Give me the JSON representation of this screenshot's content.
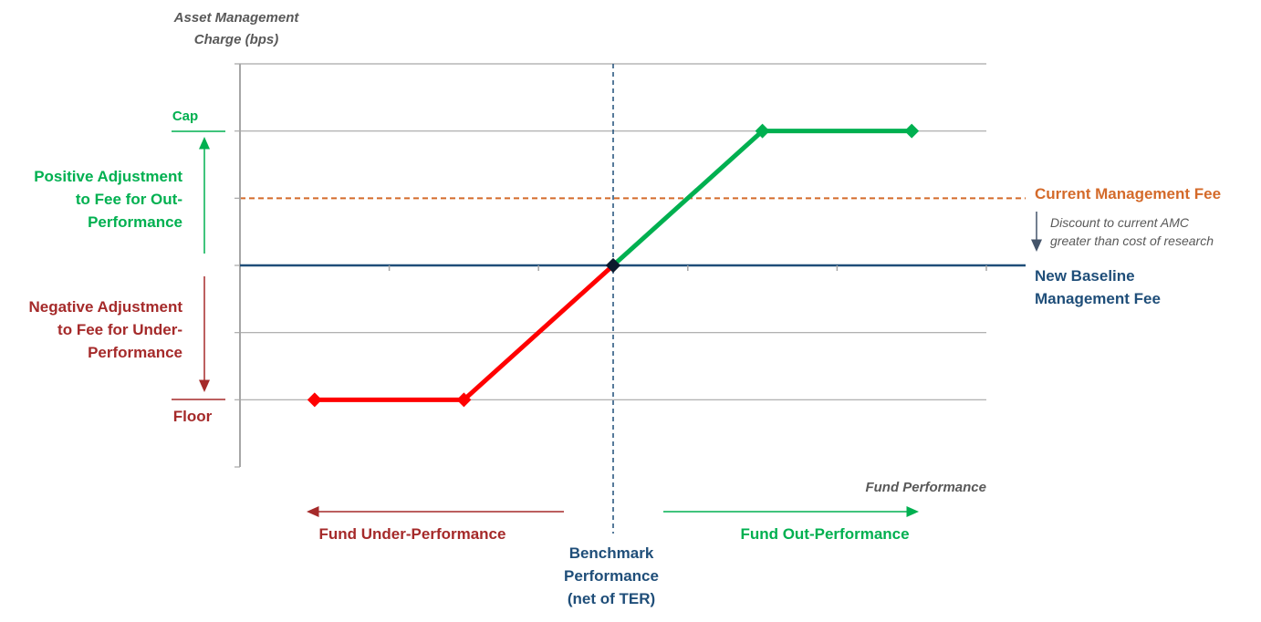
{
  "chart_data": {
    "type": "line",
    "ylabel": [
      "Asset Management",
      "Charge (bps)"
    ],
    "xlabel": "Fund Performance",
    "y_levels": {
      "floor": 1,
      "new_baseline": 3,
      "current_fee": 4,
      "cap": 5
    },
    "ylim": [
      0,
      6
    ],
    "xlim": [
      -5,
      5
    ],
    "series": [
      {
        "color": "#ff0000",
        "x": [
          -4,
          -2,
          0
        ],
        "y": [
          1,
          1,
          3
        ]
      },
      {
        "color": "#00b050",
        "x": [
          0,
          2,
          4
        ],
        "y": [
          3,
          5,
          5
        ]
      }
    ],
    "benchmark_x": 0,
    "annotations": {
      "cap": "Cap",
      "floor": "Floor",
      "positive": [
        "Positive Adjustment",
        "to Fee for Out-",
        "Performance"
      ],
      "negative": [
        "Negative Adjustment",
        "to Fee for Under-",
        "Performance"
      ],
      "current_fee": "Current Management Fee",
      "discount": [
        "Discount  to current AMC",
        "greater than cost of research"
      ],
      "new_baseline": [
        "New Baseline",
        "Management Fee"
      ],
      "under": "Fund Under-Performance",
      "out": "Fund Out-Performance",
      "benchmark": [
        "Benchmark",
        "Performance",
        "(net of TER)"
      ]
    },
    "grid": true
  },
  "colors": {
    "green": "#00b050",
    "red": "#ff0000",
    "dark_red": "#a52a2a",
    "navy": "#1f4e79",
    "orange": "#d46a2a",
    "grid": "#a6a6a6",
    "gray_text": "#595959"
  }
}
